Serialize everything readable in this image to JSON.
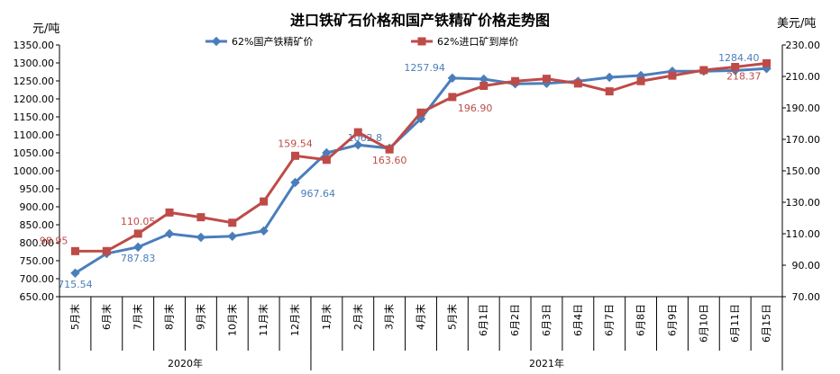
{
  "chart_data": {
    "type": "line",
    "title": "进口铁矿石价格和国产铁精矿价格走势图",
    "ylabel": "元/吨",
    "y2label": "美元/吨",
    "ylim": [
      650,
      1350
    ],
    "y2lim": [
      70,
      230
    ],
    "yticks": [
      "650.00",
      "700.00",
      "750.00",
      "800.00",
      "850.00",
      "900.00",
      "950.00",
      "1000.00",
      "1050.00",
      "1100.00",
      "1150.00",
      "1200.00",
      "1250.00",
      "1300.00",
      "1350.00"
    ],
    "y2ticks": [
      "70.00",
      "90.00",
      "110.00",
      "130.00",
      "150.00",
      "170.00",
      "190.00",
      "210.00",
      "230.00"
    ],
    "categories": [
      "5月末",
      "6月末",
      "7月末",
      "8月末",
      "9月末",
      "10月末",
      "11月末",
      "12月末",
      "1月末",
      "2月末",
      "3月末",
      "4月末",
      "5月末",
      "6月1日",
      "6月2日",
      "6月3日",
      "6月4日",
      "6月7日",
      "6月8日",
      "6月9日",
      "6月10日",
      "6月11日",
      "6月15日"
    ],
    "groups": [
      {
        "label": "2020年",
        "count": 8
      },
      {
        "label": "2021年",
        "count": 15
      }
    ],
    "legend_position": "top-center",
    "series": [
      {
        "name": "62%国产铁精矿价",
        "axis": "left",
        "color": "#4a7ebb",
        "marker": "diamond",
        "values": [
          715.54,
          770,
          787.83,
          825,
          815,
          818,
          833,
          967.64,
          1050,
          1072,
          1062.8,
          1145,
          1257.94,
          1255,
          1242,
          1243,
          1249,
          1260,
          1265,
          1277,
          1277,
          1279,
          1284.4
        ],
        "labels": [
          {
            "index": 0,
            "text": "715.54",
            "pos": "below"
          },
          {
            "index": 2,
            "text": "787.83",
            "pos": "below"
          },
          {
            "index": 7,
            "text": "967.64",
            "pos": "below-right"
          },
          {
            "index": 10,
            "text": "1062.8",
            "pos": "above-left"
          },
          {
            "index": 12,
            "text": "1257.94",
            "pos": "above-left"
          },
          {
            "index": 22,
            "text": "1284.40",
            "pos": "above-left"
          }
        ]
      },
      {
        "name": "62%进口矿到岸价",
        "axis": "right",
        "color": "#be4b48",
        "marker": "square",
        "values": [
          98.95,
          99,
          110.05,
          123.5,
          120.5,
          117,
          130.5,
          159.54,
          157,
          174.5,
          163.6,
          187,
          196.9,
          204,
          207,
          208.5,
          205.5,
          200.5,
          207,
          210.5,
          214,
          216,
          218.37
        ],
        "labels": [
          {
            "index": 0,
            "text": "98.95",
            "pos": "above-left"
          },
          {
            "index": 2,
            "text": "110.05",
            "pos": "above"
          },
          {
            "index": 7,
            "text": "159.54",
            "pos": "above"
          },
          {
            "index": 10,
            "text": "163.60",
            "pos": "below"
          },
          {
            "index": 12,
            "text": "196.90",
            "pos": "below-right"
          },
          {
            "index": 22,
            "text": "218.37",
            "pos": "below-left"
          }
        ]
      }
    ]
  }
}
